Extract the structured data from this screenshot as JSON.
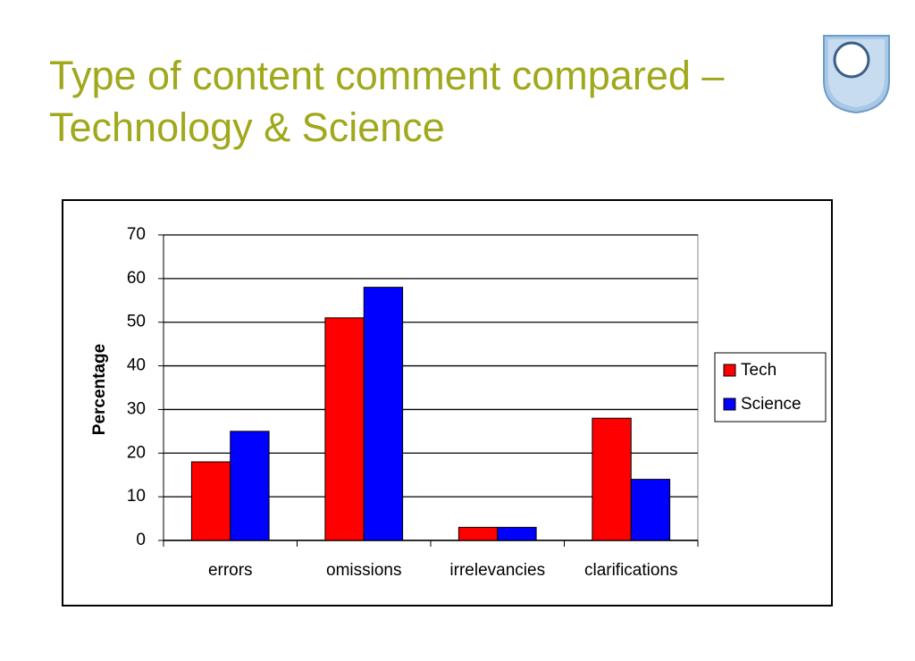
{
  "chart_data": {
    "type": "bar",
    "title": "Type of content comment compared – Technology & Science",
    "categories": [
      "errors",
      "omissions",
      "irrelevancies",
      "clarifications"
    ],
    "series": [
      {
        "name": "Tech",
        "color": "#ff0000",
        "values": [
          18,
          51,
          3,
          28
        ]
      },
      {
        "name": "Science",
        "color": "#0000ff",
        "values": [
          25,
          58,
          3,
          14
        ]
      }
    ],
    "y_label": "Percentage",
    "ylim": [
      0,
      70
    ],
    "yticks": [
      0,
      10,
      20,
      30,
      40,
      50,
      60,
      70
    ],
    "grid": true,
    "legend": "right"
  }
}
